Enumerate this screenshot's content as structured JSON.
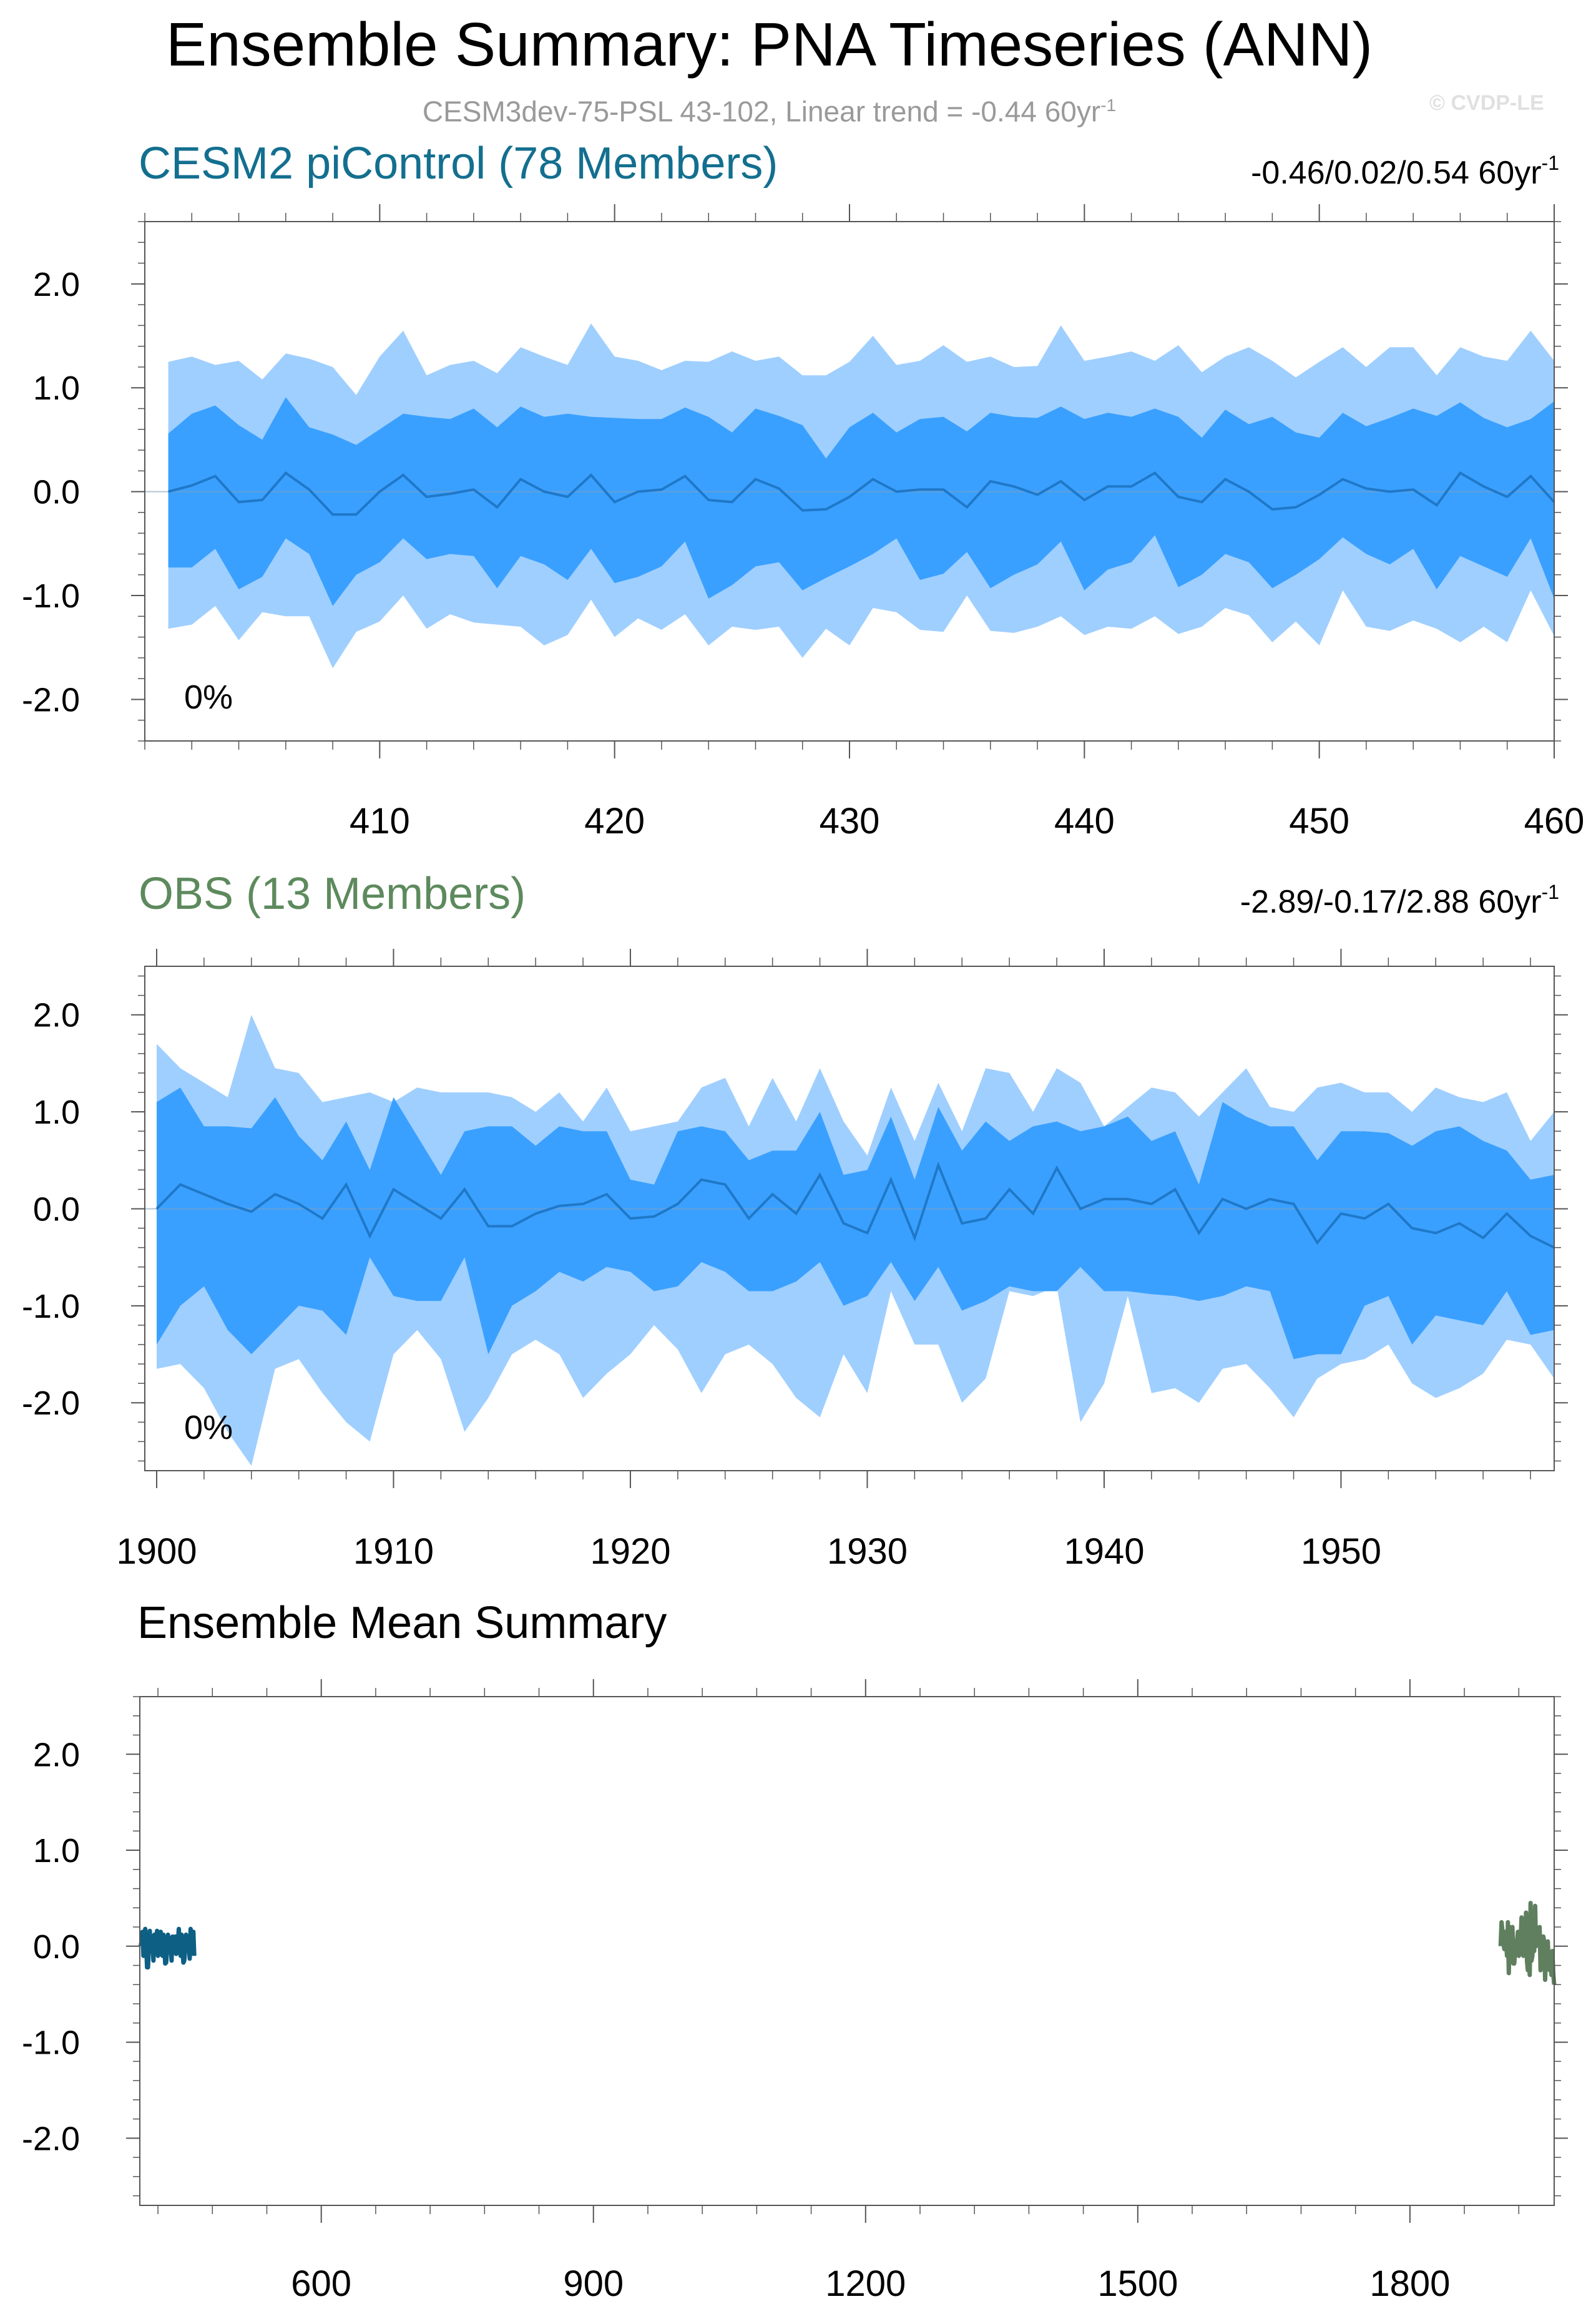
{
  "figure": {
    "title": "Ensemble Summary: PNA Timeseries (ANN)",
    "subtitle": "CESM3dev-75-PSL 43-102, Linear trend = -0.44 60yr",
    "subtitle_sup": "-1",
    "watermark": "© CVDP-LE"
  },
  "colors": {
    "cesm_title": "#136f8f",
    "obs_title": "#5d8a5d",
    "band_outer": "#9fcfff",
    "band_inner": "#3aa0ff",
    "mean_line": "#1f78c8",
    "em_cesm": "#0d5f84",
    "em_obs": "#5f7f5f",
    "zero_line": "#7f9fbf",
    "axis": "#555555"
  },
  "chart_data": [
    {
      "id": "cesm",
      "type": "area",
      "title": "CESM2 piControl (78 Members)",
      "range_label": "-0.46/0.02/0.54 60yr",
      "range_sup": "-1",
      "percent_label": "0%",
      "xlim": [
        400,
        460
      ],
      "ylim": [
        -2.4,
        2.6
      ],
      "xticks": [
        410,
        420,
        430,
        440,
        450,
        460
      ],
      "yticks": [
        2.0,
        1.0,
        0.0,
        -1.0,
        -2.0
      ],
      "ytick_labels": [
        "2.0",
        "1.0",
        "0.0",
        "-1.0",
        "-2.0"
      ],
      "x": [
        401,
        402,
        403,
        404,
        405,
        406,
        407,
        408,
        409,
        410,
        411,
        412,
        413,
        414,
        415,
        416,
        417,
        418,
        419,
        420,
        421,
        422,
        423,
        424,
        425,
        426,
        427,
        428,
        429,
        430,
        431,
        432,
        433,
        434,
        435,
        436,
        437,
        438,
        439,
        440,
        441,
        442,
        443,
        444,
        445,
        446,
        447,
        448,
        449,
        450,
        451,
        452,
        453,
        454,
        455,
        456,
        457,
        458,
        459,
        460
      ],
      "outer_upper": [
        1.25,
        1.3,
        1.22,
        1.26,
        1.08,
        1.33,
        1.28,
        1.2,
        0.93,
        1.3,
        1.55,
        1.12,
        1.22,
        1.26,
        1.14,
        1.39,
        1.3,
        1.22,
        1.62,
        1.3,
        1.26,
        1.17,
        1.26,
        1.25,
        1.35,
        1.26,
        1.3,
        1.12,
        1.12,
        1.25,
        1.5,
        1.22,
        1.26,
        1.41,
        1.25,
        1.3,
        1.2,
        1.21,
        1.6,
        1.26,
        1.3,
        1.35,
        1.26,
        1.41,
        1.15,
        1.3,
        1.39,
        1.26,
        1.1,
        1.25,
        1.39,
        1.2,
        1.39,
        1.39,
        1.12,
        1.39,
        1.3,
        1.26,
        1.55,
        1.26
      ],
      "inner_upper": [
        0.56,
        0.75,
        0.83,
        0.64,
        0.5,
        0.91,
        0.62,
        0.55,
        0.45,
        0.6,
        0.75,
        0.72,
        0.7,
        0.8,
        0.62,
        0.82,
        0.72,
        0.75,
        0.72,
        0.71,
        0.7,
        0.7,
        0.81,
        0.72,
        0.57,
        0.8,
        0.73,
        0.64,
        0.32,
        0.62,
        0.76,
        0.57,
        0.7,
        0.72,
        0.58,
        0.76,
        0.72,
        0.71,
        0.82,
        0.7,
        0.76,
        0.72,
        0.8,
        0.72,
        0.52,
        0.79,
        0.65,
        0.72,
        0.57,
        0.52,
        0.76,
        0.63,
        0.71,
        0.8,
        0.73,
        0.86,
        0.71,
        0.62,
        0.7,
        0.87
      ],
      "mean": [
        0.0,
        0.06,
        0.15,
        -0.1,
        -0.08,
        0.18,
        0.02,
        -0.22,
        -0.22,
        0.0,
        0.16,
        -0.05,
        -0.02,
        0.02,
        -0.15,
        0.12,
        0.0,
        -0.05,
        0.16,
        -0.1,
        0.0,
        0.02,
        0.15,
        -0.08,
        -0.1,
        0.12,
        0.03,
        -0.18,
        -0.17,
        -0.05,
        0.12,
        0.0,
        0.02,
        0.02,
        -0.15,
        0.1,
        0.05,
        -0.03,
        0.1,
        -0.08,
        0.05,
        0.05,
        0.18,
        -0.05,
        -0.1,
        0.12,
        0.0,
        -0.17,
        -0.15,
        -0.03,
        0.12,
        0.03,
        0.0,
        0.02,
        -0.13,
        0.18,
        0.05,
        -0.05,
        0.15,
        -0.1
      ],
      "inner_lower": [
        -0.73,
        -0.73,
        -0.55,
        -0.94,
        -0.82,
        -0.45,
        -0.6,
        -1.1,
        -0.8,
        -0.68,
        -0.45,
        -0.65,
        -0.6,
        -0.62,
        -0.93,
        -0.62,
        -0.7,
        -0.85,
        -0.55,
        -0.88,
        -0.82,
        -0.72,
        -0.48,
        -1.03,
        -0.9,
        -0.72,
        -0.68,
        -0.95,
        -0.83,
        -0.72,
        -0.6,
        -0.45,
        -0.85,
        -0.79,
        -0.58,
        -0.93,
        -0.8,
        -0.7,
        -0.48,
        -0.95,
        -0.75,
        -0.68,
        -0.42,
        -0.92,
        -0.8,
        -0.6,
        -0.68,
        -0.93,
        -0.8,
        -0.65,
        -0.44,
        -0.6,
        -0.7,
        -0.55,
        -0.94,
        -0.62,
        -0.72,
        -0.82,
        -0.45,
        -1.03
      ],
      "outer_lower": [
        -1.32,
        -1.28,
        -1.1,
        -1.43,
        -1.16,
        -1.2,
        -1.2,
        -1.7,
        -1.35,
        -1.25,
        -1.0,
        -1.32,
        -1.18,
        -1.26,
        -1.28,
        -1.3,
        -1.48,
        -1.38,
        -1.04,
        -1.4,
        -1.22,
        -1.33,
        -1.18,
        -1.48,
        -1.3,
        -1.33,
        -1.3,
        -1.6,
        -1.32,
        -1.48,
        -1.12,
        -1.16,
        -1.33,
        -1.35,
        -1.0,
        -1.34,
        -1.36,
        -1.3,
        -1.2,
        -1.38,
        -1.3,
        -1.32,
        -1.2,
        -1.37,
        -1.3,
        -1.12,
        -1.19,
        -1.45,
        -1.25,
        -1.48,
        -0.95,
        -1.3,
        -1.34,
        -1.24,
        -1.32,
        -1.45,
        -1.3,
        -1.45,
        -0.95,
        -1.39
      ]
    },
    {
      "id": "obs",
      "type": "area",
      "title": "OBS (13 Members)",
      "range_label": "-2.89/-0.17/2.88 60yr",
      "range_sup": "-1",
      "percent_label": "0%",
      "xlim": [
        1899.5,
        1959
      ],
      "ylim": [
        -2.7,
        2.5
      ],
      "xticks": [
        1900,
        1910,
        1920,
        1930,
        1940,
        1950
      ],
      "yticks": [
        2.0,
        1.0,
        0.0,
        -1.0,
        -2.0
      ],
      "ytick_labels": [
        "2.0",
        "1.0",
        "0.0",
        "-1.0",
        "-2.0"
      ],
      "x": [
        1900,
        1901,
        1902,
        1903,
        1904,
        1905,
        1906,
        1907,
        1908,
        1909,
        1910,
        1911,
        1912,
        1913,
        1914,
        1915,
        1916,
        1917,
        1918,
        1919,
        1920,
        1921,
        1922,
        1923,
        1924,
        1925,
        1926,
        1927,
        1928,
        1929,
        1930,
        1931,
        1932,
        1933,
        1934,
        1935,
        1936,
        1937,
        1938,
        1939,
        1940,
        1941,
        1942,
        1943,
        1944,
        1945,
        1946,
        1947,
        1948,
        1949,
        1950,
        1951,
        1952,
        1953,
        1954,
        1955,
        1956,
        1957,
        1958,
        1959
      ],
      "outer_upper": [
        1.7,
        1.45,
        1.3,
        1.15,
        2.0,
        1.45,
        1.4,
        1.1,
        1.15,
        1.2,
        1.1,
        1.25,
        1.2,
        1.2,
        1.2,
        1.15,
        1.0,
        1.2,
        0.9,
        1.25,
        0.8,
        0.85,
        0.9,
        1.25,
        1.35,
        0.85,
        1.35,
        0.9,
        1.45,
        0.9,
        0.55,
        1.25,
        0.7,
        1.3,
        0.8,
        1.45,
        1.4,
        1.0,
        1.45,
        1.3,
        0.85,
        1.05,
        1.25,
        1.2,
        0.95,
        1.2,
        1.45,
        1.05,
        1.0,
        1.25,
        1.3,
        1.2,
        1.2,
        1.0,
        1.25,
        1.15,
        1.1,
        1.2,
        0.7,
        1.0
      ],
      "inner_upper": [
        1.1,
        1.25,
        0.85,
        0.85,
        0.83,
        1.15,
        0.75,
        0.5,
        0.9,
        0.4,
        1.15,
        0.75,
        0.35,
        0.8,
        0.85,
        0.85,
        0.65,
        0.85,
        0.8,
        0.8,
        0.3,
        0.25,
        0.8,
        0.85,
        0.8,
        0.5,
        0.6,
        0.6,
        1.0,
        0.35,
        0.4,
        0.95,
        0.3,
        1.05,
        0.6,
        0.9,
        0.7,
        0.85,
        0.9,
        0.8,
        0.85,
        0.95,
        0.7,
        0.8,
        0.25,
        1.1,
        0.95,
        0.85,
        0.85,
        0.5,
        0.8,
        0.8,
        0.78,
        0.65,
        0.8,
        0.85,
        0.7,
        0.6,
        0.3,
        0.35
      ],
      "mean": [
        0.0,
        0.25,
        0.15,
        0.05,
        -0.03,
        0.15,
        0.05,
        -0.1,
        0.25,
        -0.28,
        0.2,
        0.05,
        -0.1,
        0.2,
        -0.18,
        -0.18,
        -0.05,
        0.03,
        0.05,
        0.15,
        -0.1,
        -0.08,
        0.05,
        0.3,
        0.25,
        -0.1,
        0.15,
        -0.05,
        0.35,
        -0.15,
        -0.25,
        0.3,
        -0.3,
        0.45,
        -0.15,
        -0.1,
        0.2,
        -0.05,
        0.42,
        0.0,
        0.1,
        0.1,
        0.05,
        0.2,
        -0.25,
        0.1,
        0.0,
        0.1,
        0.05,
        -0.35,
        -0.05,
        -0.1,
        0.05,
        -0.2,
        -0.25,
        -0.15,
        -0.3,
        -0.05,
        -0.28,
        -0.4
      ],
      "inner_lower": [
        -1.4,
        -1.0,
        -0.8,
        -1.25,
        -1.5,
        -1.25,
        -1.0,
        -1.05,
        -1.3,
        -0.5,
        -0.9,
        -0.95,
        -0.95,
        -0.5,
        -1.5,
        -1.0,
        -0.85,
        -0.65,
        -0.75,
        -0.6,
        -0.65,
        -0.85,
        -0.8,
        -0.55,
        -0.65,
        -0.85,
        -0.85,
        -0.75,
        -0.55,
        -1.0,
        -0.9,
        -0.55,
        -0.95,
        -0.6,
        -1.05,
        -0.95,
        -0.8,
        -0.85,
        -0.85,
        -0.6,
        -0.85,
        -0.85,
        -0.88,
        -0.9,
        -0.95,
        -0.9,
        -0.8,
        -0.85,
        -1.55,
        -1.5,
        -1.5,
        -1.0,
        -0.9,
        -1.4,
        -1.1,
        -1.15,
        -1.2,
        -0.85,
        -1.3,
        -1.25
      ],
      "outer_lower": [
        -1.65,
        -1.6,
        -1.85,
        -2.3,
        -2.65,
        -1.65,
        -1.55,
        -1.9,
        -2.2,
        -2.4,
        -1.5,
        -1.25,
        -1.55,
        -2.3,
        -1.95,
        -1.5,
        -1.35,
        -1.5,
        -1.95,
        -1.7,
        -1.5,
        -1.2,
        -1.45,
        -1.9,
        -1.5,
        -1.4,
        -1.6,
        -1.95,
        -2.15,
        -1.5,
        -1.9,
        -0.85,
        -1.4,
        -1.4,
        -2.0,
        -1.75,
        -0.85,
        -0.9,
        -0.8,
        -2.2,
        -1.8,
        -0.9,
        -1.9,
        -1.85,
        -2.0,
        -1.65,
        -1.6,
        -1.85,
        -2.15,
        -1.75,
        -1.6,
        -1.55,
        -1.4,
        -1.8,
        -1.95,
        -1.85,
        -1.7,
        -1.35,
        -1.4,
        -1.75
      ]
    },
    {
      "id": "em",
      "type": "line",
      "title": "Ensemble Mean Summary",
      "xlim": [
        400,
        1959
      ],
      "ylim": [
        -2.7,
        2.6
      ],
      "xticks": [
        600,
        900,
        1200,
        1500,
        1800
      ],
      "yticks": [
        2.0,
        1.0,
        0.0,
        -1.0,
        -2.0
      ],
      "ytick_labels": [
        "2.0",
        "1.0",
        "0.0",
        "-1.0",
        "-2.0"
      ],
      "series": [
        {
          "name": "CESM2 piControl",
          "source": "cesm"
        },
        {
          "name": "OBS",
          "source": "obs"
        }
      ]
    }
  ]
}
